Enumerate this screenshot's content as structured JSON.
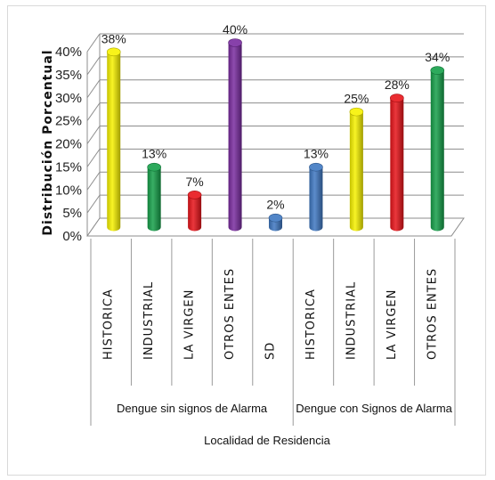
{
  "chart_data": {
    "type": "bar",
    "ylabel": "Distribución Porcentual",
    "xlabel": "Localidad de Residencia",
    "ylim": [
      0,
      40
    ],
    "yticks": [
      "0%",
      "5%",
      "10%",
      "15%",
      "20%",
      "25%",
      "30%",
      "35%",
      "40%"
    ],
    "grid": true,
    "groups": [
      {
        "name": "Dengue sin signos de Alarma",
        "categories": [
          "HISTORICA",
          "INDUSTRIAL",
          "LA VIRGEN",
          "OTROS ENTES",
          "SD"
        ],
        "values": [
          38,
          13,
          7,
          40,
          2
        ],
        "labels": [
          "38%",
          "13%",
          "7%",
          "40%",
          "2%"
        ],
        "colors": [
          "#f7f200",
          "#16a04a",
          "#e8141a",
          "#7a2ca0",
          "#3f78c2"
        ]
      },
      {
        "name": "Dengue con Signos de Alarma",
        "categories": [
          "HISTORICA",
          "INDUSTRIAL",
          "LA VIRGEN",
          "OTROS ENTES"
        ],
        "values": [
          13,
          25,
          28,
          34
        ],
        "labels": [
          "13%",
          "25%",
          "28%",
          "34%"
        ],
        "colors": [
          "#3f78c2",
          "#f7f200",
          "#e8141a",
          "#16a04a"
        ]
      }
    ]
  }
}
